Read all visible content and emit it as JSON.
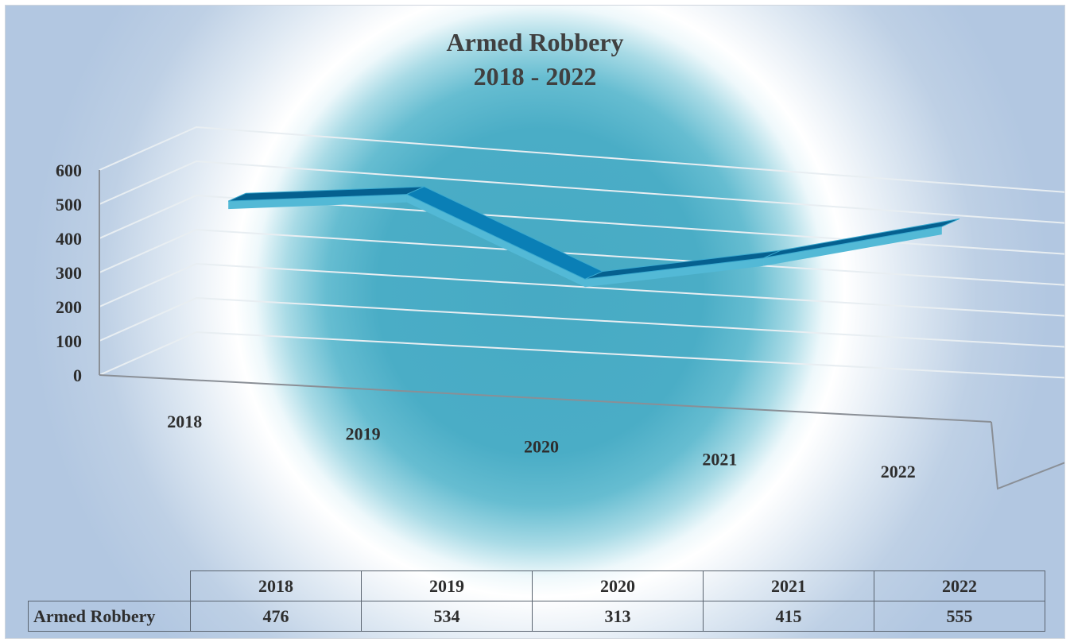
{
  "chart_data": {
    "type": "line",
    "style": "3d-ribbon",
    "title": [
      "Armed Robbery",
      "2018 - 2022"
    ],
    "categories": [
      "2018",
      "2019",
      "2020",
      "2021",
      "2022"
    ],
    "series": [
      {
        "name": "Armed Robbery",
        "values": [
          476,
          534,
          313,
          415,
          555
        ]
      }
    ],
    "y_ticks": [
      "0",
      "100",
      "200",
      "300",
      "400",
      "500",
      "600"
    ],
    "ylim": [
      0,
      600
    ],
    "grid": true,
    "legend": "none",
    "data_table": true,
    "colors": {
      "ribbon_top": "#0a7fb6",
      "ribbon_front": "#53b9d6",
      "ribbon_dark": "#05608f",
      "gridline": "#e8eef2"
    }
  },
  "table": {
    "headers": [
      "2018",
      "2019",
      "2020",
      "2021",
      "2022"
    ],
    "row_label": "Armed Robbery",
    "values": [
      "476",
      "534",
      "313",
      "415",
      "555"
    ]
  }
}
